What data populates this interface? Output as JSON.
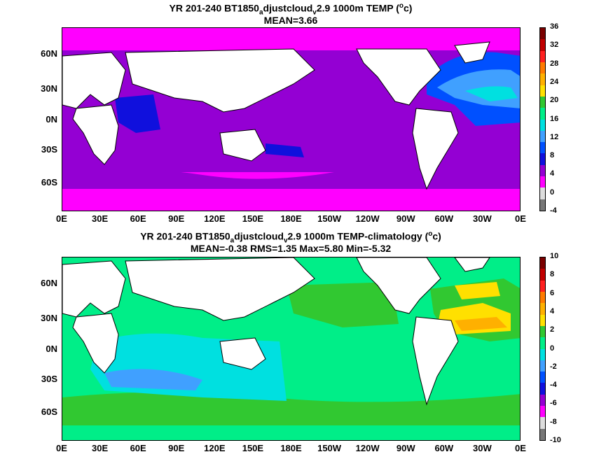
{
  "panel1": {
    "title_line1_a": "YR 201-240 BT1850",
    "title_line1_sub_a": "a",
    "title_line1_b": "djustcloud",
    "title_line1_sub_b": "v",
    "title_line1_c": "2.9 1000m TEMP (",
    "title_line1_sup": "o",
    "title_line1_d": "c)",
    "title_line2": "MEAN=3.66",
    "colorbar_labels": [
      "36",
      "32",
      "28",
      "24",
      "20",
      "16",
      "12",
      "8",
      "4",
      "0",
      "-4"
    ],
    "colorbar_colors": [
      "#7a0000",
      "#c00000",
      "#ff2020",
      "#ff7a00",
      "#ffb000",
      "#ffe000",
      "#31c831",
      "#00ee88",
      "#00e0e0",
      "#40a0ff",
      "#0050ff",
      "#1010dd",
      "#9400d3",
      "#ff00ff",
      "#dddddd",
      "#777777"
    ]
  },
  "panel2": {
    "title_line1_a": "YR 201-240 BT1850",
    "title_line1_sub_a": "a",
    "title_line1_b": "djustcloud",
    "title_line1_sub_b": "v",
    "title_line1_c": "2.9 1000m TEMP-climatology (",
    "title_line1_sup": "o",
    "title_line1_d": "c)",
    "title_line2": "MEAN=-0.38   RMS=1.35   Max=5.80   Min=-5.32",
    "colorbar_labels": [
      "10",
      "8",
      "6",
      "4",
      "2",
      "0",
      "-2",
      "-4",
      "-6",
      "-8",
      "-10"
    ],
    "colorbar_colors": [
      "#7a0000",
      "#c00000",
      "#ff2020",
      "#ff7a00",
      "#ffb000",
      "#ffe000",
      "#31c831",
      "#00ee88",
      "#00e0e0",
      "#40a0ff",
      "#0050ff",
      "#1010dd",
      "#9400d3",
      "#ff00ff",
      "#dddddd",
      "#777777"
    ]
  },
  "lat_labels": [
    "60N",
    "30N",
    "0N",
    "30S",
    "60S"
  ],
  "lon_labels": [
    "0E",
    "30E",
    "60E",
    "90E",
    "120E",
    "150E",
    "180E",
    "150W",
    "120W",
    "90W",
    "60W",
    "30W",
    "0E"
  ]
}
